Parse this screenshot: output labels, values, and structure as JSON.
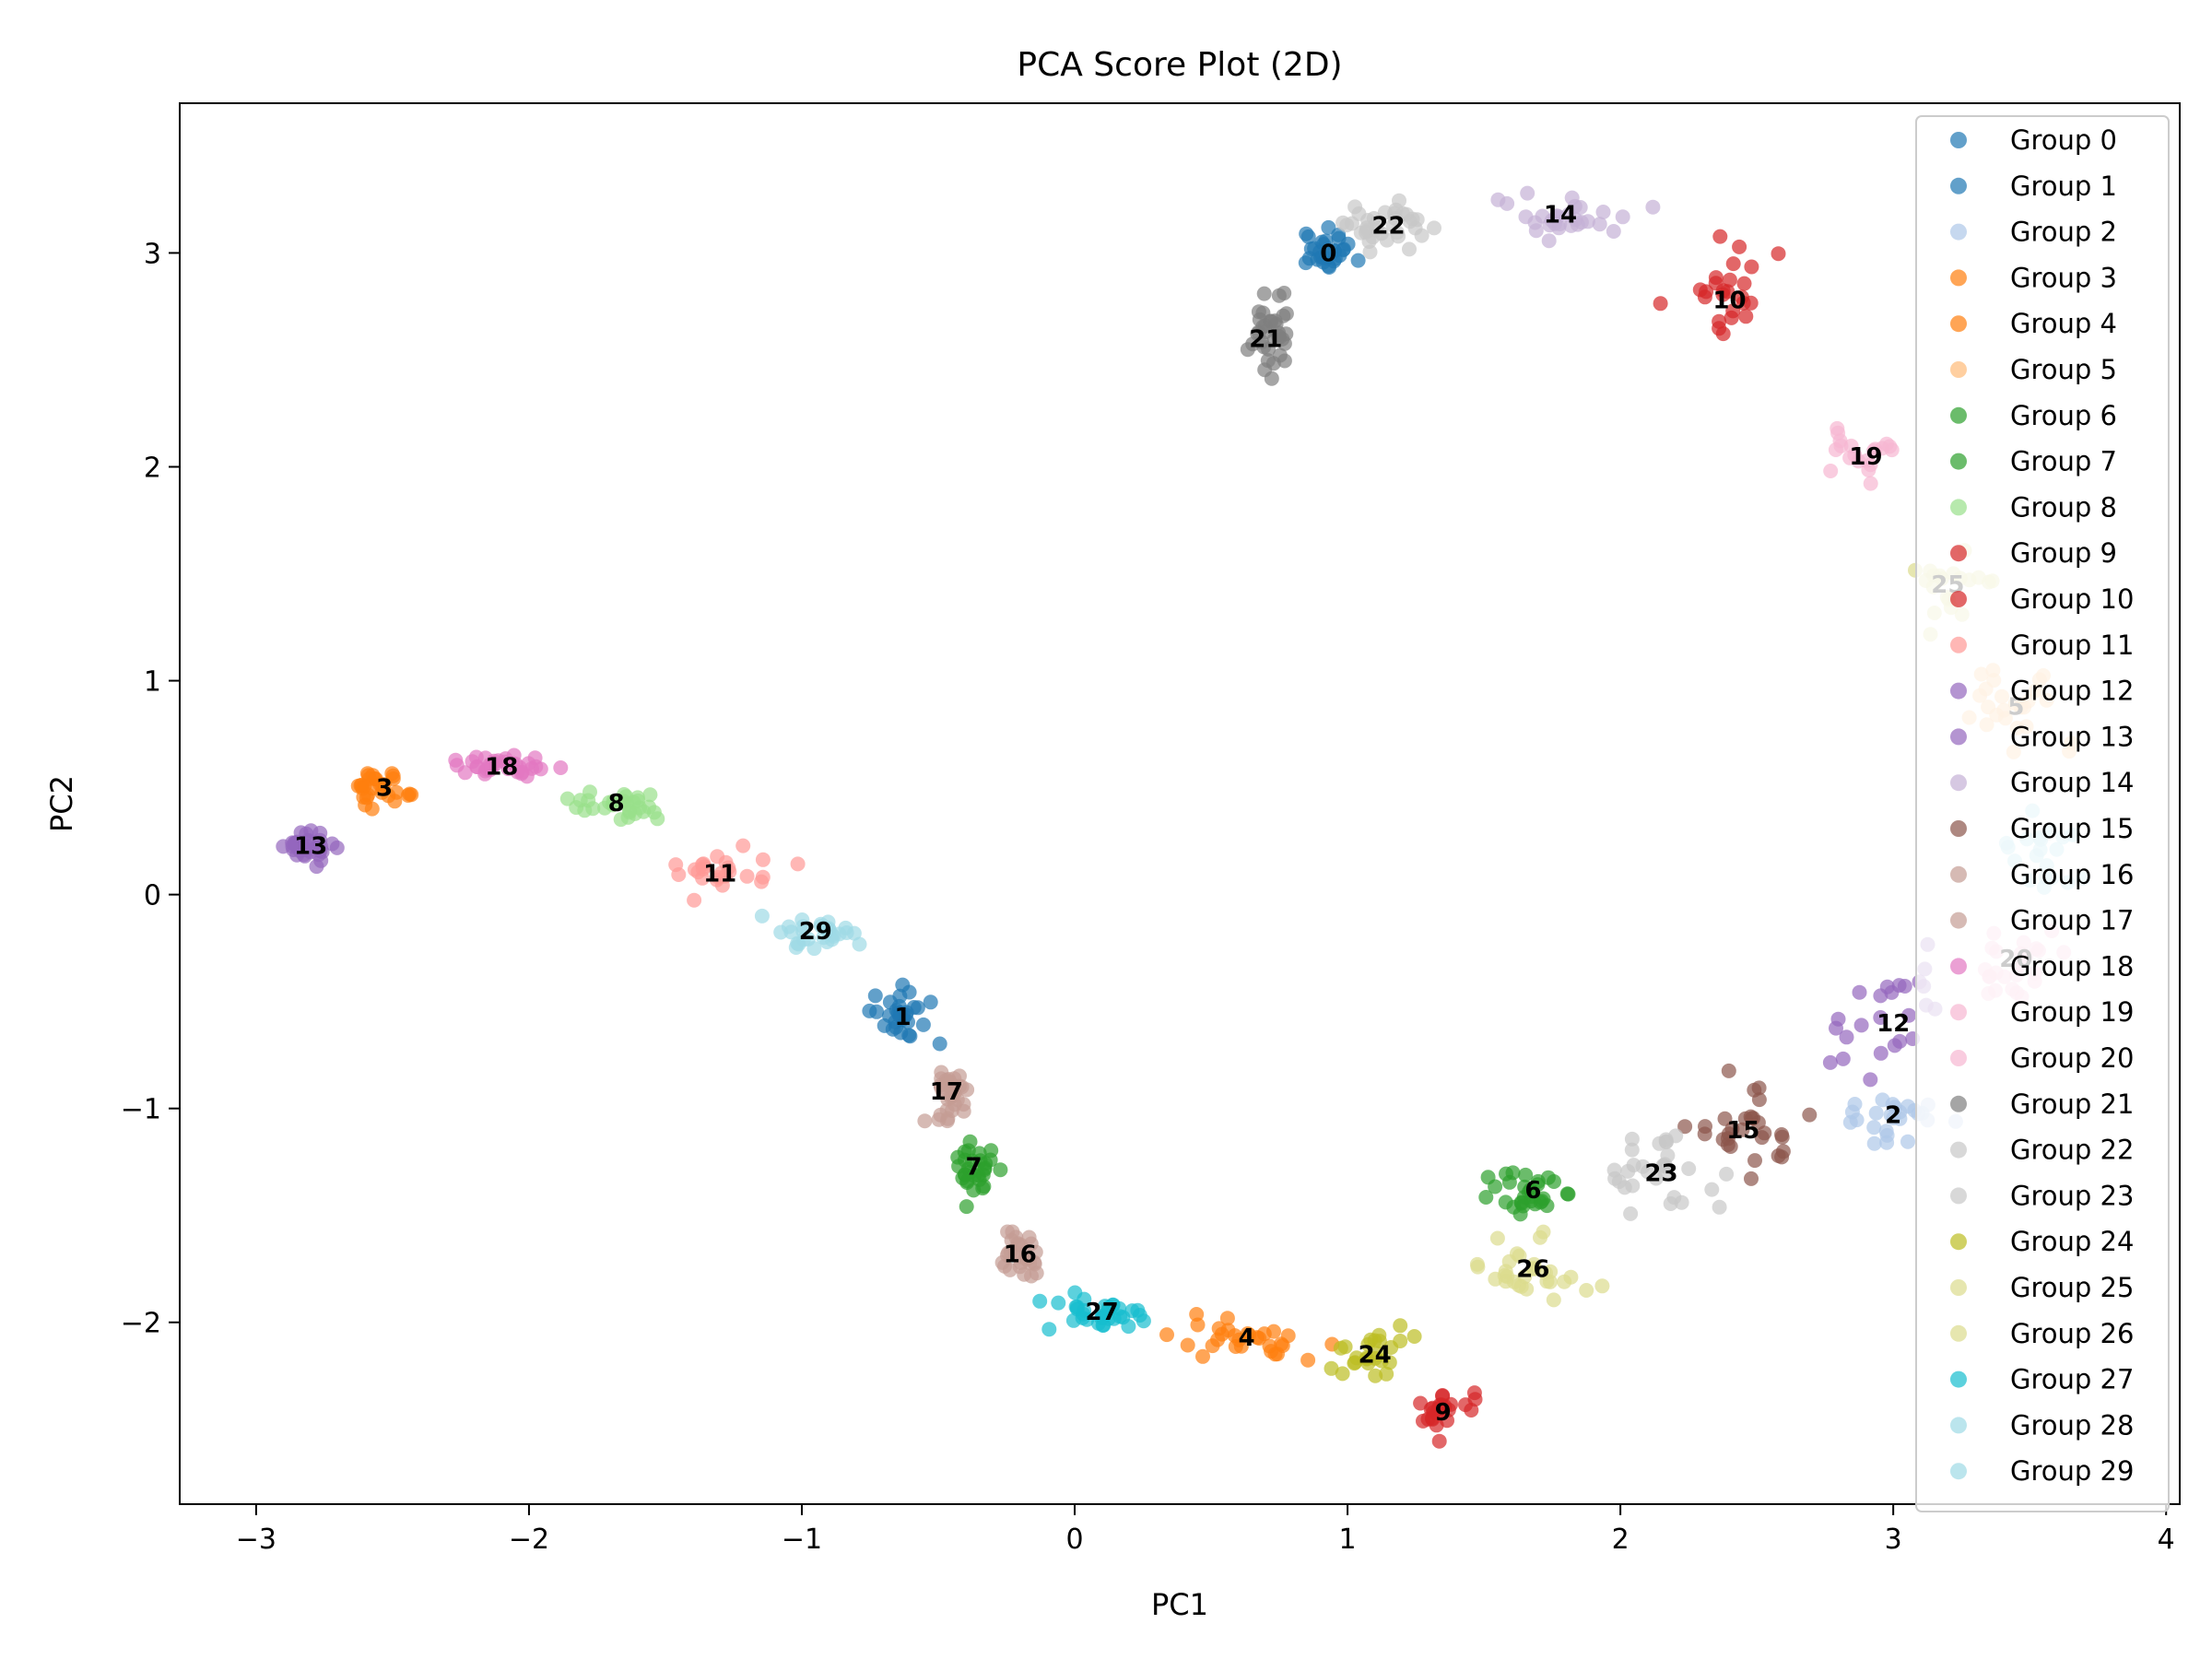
{
  "chart_data": {
    "type": "scatter",
    "title": "PCA Score Plot (2D)",
    "xlabel": "PC1",
    "ylabel": "PC2",
    "xlim": [
      -3.28,
      4.05
    ],
    "ylim": [
      -2.85,
      3.7
    ],
    "xticks": [
      -3,
      -2,
      -1,
      0,
      1,
      2,
      3,
      4
    ],
    "yticks": [
      -2,
      -1,
      0,
      1,
      2,
      3
    ],
    "xtick_labels": [
      "−3",
      "−2",
      "−1",
      "0",
      "1",
      "2",
      "3",
      "4"
    ],
    "ytick_labels": [
      "−2",
      "−1",
      "0",
      "1",
      "2",
      "3"
    ],
    "grid": false,
    "legend_position": "top-right",
    "marker_alpha": 0.7,
    "series": [
      {
        "name": "Group 0",
        "label": "0",
        "color": "#1f77b4",
        "centroid": [
          0.93,
          3.0
        ],
        "spread": [
          0.09,
          0.08
        ],
        "n": 30
      },
      {
        "name": "Group 1",
        "label": "1",
        "color": "#1f77b4",
        "centroid": [
          -0.63,
          -0.57
        ],
        "spread": [
          0.1,
          0.1
        ],
        "n": 30
      },
      {
        "name": "Group 2",
        "label": "2",
        "color": "#aec7e8",
        "centroid": [
          3.0,
          -1.03
        ],
        "spread": [
          0.15,
          0.15
        ],
        "n": 25
      },
      {
        "name": "Group 3",
        "label": "3",
        "color": "#ff7f0e",
        "centroid": [
          -2.53,
          0.5
        ],
        "spread": [
          0.12,
          0.07
        ],
        "n": 30
      },
      {
        "name": "Group 4",
        "label": "4",
        "color": "#ff7f0e",
        "centroid": [
          0.63,
          -2.07
        ],
        "spread": [
          0.2,
          0.1
        ],
        "n": 30
      },
      {
        "name": "Group 5",
        "label": "5",
        "color": "#ffbb78",
        "centroid": [
          3.45,
          0.88
        ],
        "spread": [
          0.15,
          0.2
        ],
        "n": 25
      },
      {
        "name": "Group 6",
        "label": "6",
        "color": "#2ca02c",
        "centroid": [
          1.68,
          -1.38
        ],
        "spread": [
          0.2,
          0.12
        ],
        "n": 30
      },
      {
        "name": "Group 7",
        "label": "7",
        "color": "#2ca02c",
        "centroid": [
          -0.37,
          -1.27
        ],
        "spread": [
          0.06,
          0.12
        ],
        "n": 30
      },
      {
        "name": "Group 8",
        "label": "8",
        "color": "#98df8a",
        "centroid": [
          -1.68,
          0.43
        ],
        "spread": [
          0.15,
          0.08
        ],
        "n": 30
      },
      {
        "name": "Group 9",
        "label": "9",
        "color": "#d62728",
        "centroid": [
          1.35,
          -2.42
        ],
        "spread": [
          0.1,
          0.08
        ],
        "n": 25
      },
      {
        "name": "Group 10",
        "label": "10",
        "color": "#d62728",
        "centroid": [
          2.4,
          2.78
        ],
        "spread": [
          0.15,
          0.2
        ],
        "n": 25
      },
      {
        "name": "Group 11",
        "label": "11",
        "color": "#ff9896",
        "centroid": [
          -1.3,
          0.1
        ],
        "spread": [
          0.15,
          0.08
        ],
        "n": 25
      },
      {
        "name": "Group 12",
        "label": "12",
        "color": "#9467bd",
        "centroid": [
          3.0,
          -0.6
        ],
        "spread": [
          0.2,
          0.25
        ],
        "n": 25
      },
      {
        "name": "Group 13",
        "label": "13",
        "color": "#9467bd",
        "centroid": [
          -2.8,
          0.23
        ],
        "spread": [
          0.08,
          0.07
        ],
        "n": 35
      },
      {
        "name": "Group 14",
        "label": "14",
        "color": "#c5b0d5",
        "centroid": [
          1.78,
          3.18
        ],
        "spread": [
          0.25,
          0.1
        ],
        "n": 30
      },
      {
        "name": "Group 15",
        "label": "15",
        "color": "#8c564b",
        "centroid": [
          2.45,
          -1.1
        ],
        "spread": [
          0.2,
          0.18
        ],
        "n": 30
      },
      {
        "name": "Group 16",
        "label": "16",
        "color": "#c49c94",
        "centroid": [
          -0.2,
          -1.68
        ],
        "spread": [
          0.08,
          0.1
        ],
        "n": 30
      },
      {
        "name": "Group 17",
        "label": "17",
        "color": "#c49c94",
        "centroid": [
          -0.47,
          -0.92
        ],
        "spread": [
          0.06,
          0.12
        ],
        "n": 35
      },
      {
        "name": "Group 18",
        "label": "18",
        "color": "#e377c2",
        "centroid": [
          -2.1,
          0.6
        ],
        "spread": [
          0.15,
          0.05
        ],
        "n": 35
      },
      {
        "name": "Group 19",
        "label": "19",
        "color": "#f7b6d2",
        "centroid": [
          2.9,
          2.05
        ],
        "spread": [
          0.12,
          0.15
        ],
        "n": 20
      },
      {
        "name": "Group 20",
        "label": "20",
        "color": "#f7b6d2",
        "centroid": [
          3.45,
          -0.3
        ],
        "spread": [
          0.15,
          0.2
        ],
        "n": 25
      },
      {
        "name": "Group 21",
        "label": "21",
        "color": "#7f7f7f",
        "centroid": [
          0.7,
          2.6
        ],
        "spread": [
          0.08,
          0.15
        ],
        "n": 35
      },
      {
        "name": "Group 22",
        "label": "22",
        "color": "#c7c7c7",
        "centroid": [
          1.15,
          3.13
        ],
        "spread": [
          0.18,
          0.1
        ],
        "n": 35
      },
      {
        "name": "Group 23",
        "label": "23",
        "color": "#c7c7c7",
        "centroid": [
          2.15,
          -1.3
        ],
        "spread": [
          0.2,
          0.15
        ],
        "n": 30
      },
      {
        "name": "Group 24",
        "label": "24",
        "color": "#bcbd22",
        "centroid": [
          1.1,
          -2.15
        ],
        "spread": [
          0.12,
          0.1
        ],
        "n": 25
      },
      {
        "name": "Group 25",
        "label": "25",
        "color": "#dbdb8d",
        "centroid": [
          3.2,
          1.45
        ],
        "spread": [
          0.15,
          0.15
        ],
        "n": 20
      },
      {
        "name": "Group 26",
        "label": "26",
        "color": "#dbdb8d",
        "centroid": [
          1.68,
          -1.75
        ],
        "spread": [
          0.22,
          0.14
        ],
        "n": 30
      },
      {
        "name": "Group 27",
        "label": "27",
        "color": "#17becf",
        "centroid": [
          0.1,
          -1.95
        ],
        "spread": [
          0.15,
          0.08
        ],
        "n": 35
      },
      {
        "name": "Group 28",
        "label": "",
        "color": "#9edae5",
        "centroid": [
          3.55,
          0.2
        ],
        "spread": [
          0.15,
          0.18
        ],
        "n": 20
      },
      {
        "name": "Group 29",
        "label": "29",
        "color": "#9edae5",
        "centroid": [
          -0.95,
          -0.17
        ],
        "spread": [
          0.15,
          0.08
        ],
        "n": 30
      }
    ]
  }
}
